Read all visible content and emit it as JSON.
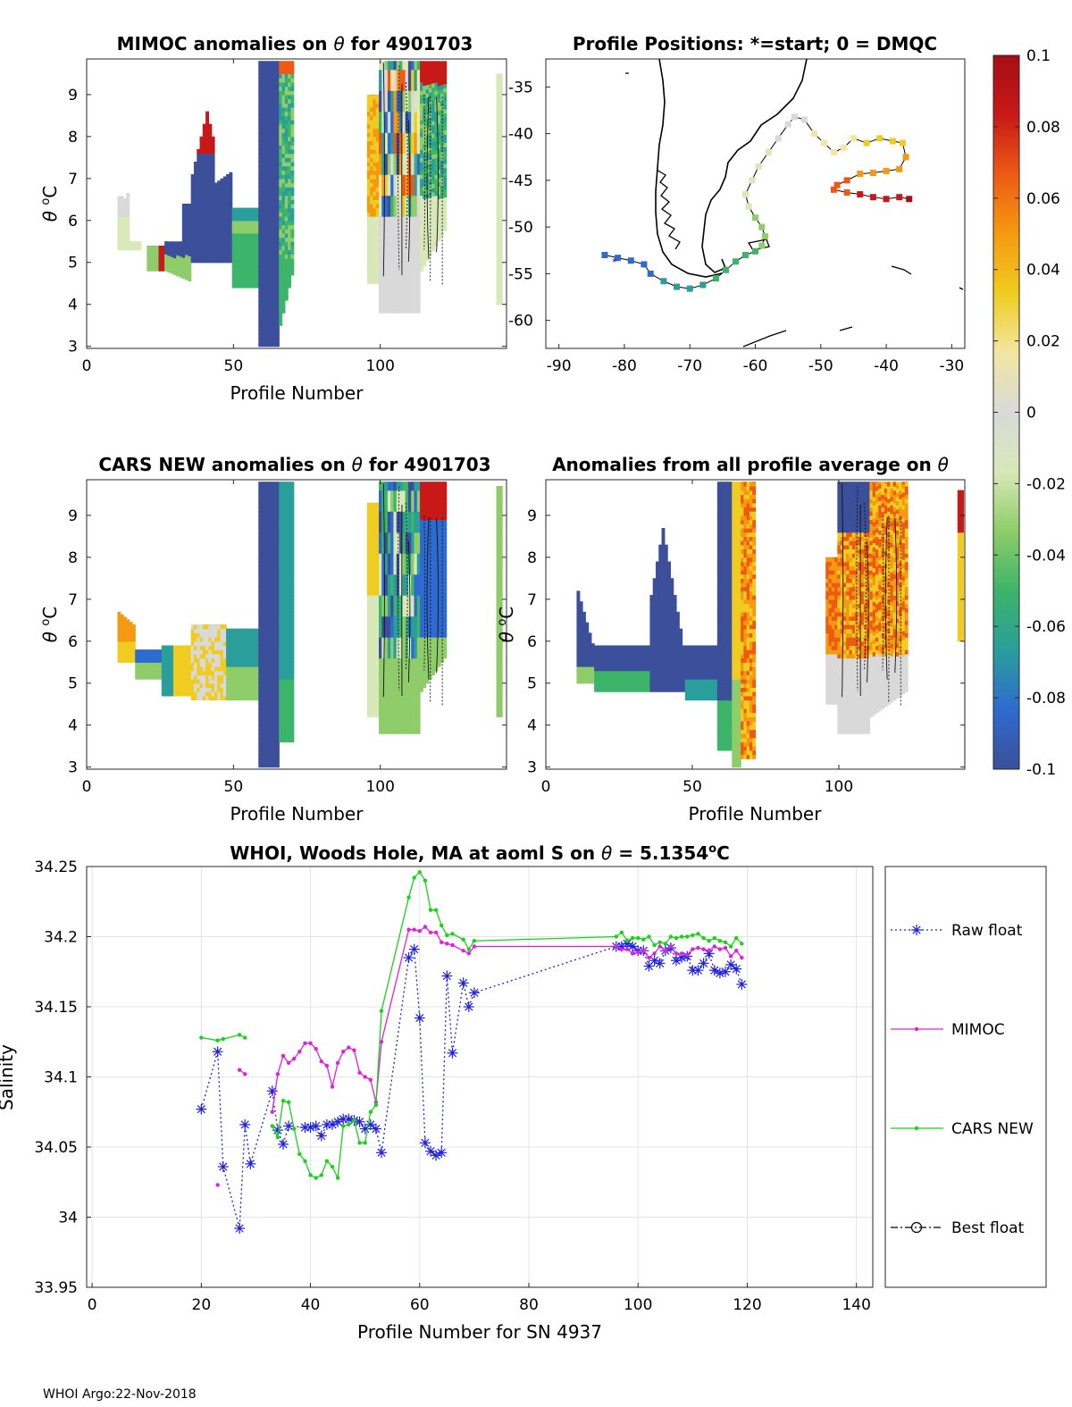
{
  "footer": "WHOI Argo:22-Nov-2018",
  "theta_symbol": "θ",
  "panels": {
    "mimoc": {
      "title_a": "MIMOC anomalies on",
      "title_b": "for 4901703"
    },
    "map": {
      "title": "Profile Positions: *=start; 0 = DMQC"
    },
    "cars": {
      "title_a": "CARS NEW anomalies on",
      "title_b": "for 4901703"
    },
    "allavg": {
      "title_a": "Anomalies from all profile average on"
    },
    "xlabel": "Profile Number",
    "ylabel_theta": "C",
    "ylabel_deg": "o"
  },
  "colorbar": {
    "ticks": [
      "0.1",
      "0.08",
      "0.06",
      "0.04",
      "0.02",
      "0",
      "-0.02",
      "-0.04",
      "-0.06",
      "-0.08",
      "-0.1"
    ],
    "colors": [
      "#3b4f9a",
      "#2e6bd0",
      "#2a9e9a",
      "#3cb46a",
      "#8fcc6a",
      "#d8e8b8",
      "#d9d9d9",
      "#f2e6a0",
      "#f0cc20",
      "#f59a10",
      "#ee5a14",
      "#c81818",
      "#a50f15"
    ]
  },
  "chart_data": [
    {
      "type": "heatmap",
      "name": "MIMOC anomalies",
      "title": "MIMOC anomalies on θ for 4901703",
      "xlabel": "Profile Number",
      "ylabel": "θ °C",
      "xlim": [
        0,
        143
      ],
      "ylim": [
        2.95,
        9.85
      ],
      "xticks": [
        0,
        50,
        100
      ],
      "yticks": [
        3,
        4,
        5,
        6,
        7,
        8,
        9
      ]
    },
    {
      "type": "scatter",
      "name": "Profile Positions",
      "title": "Profile Positions: *=start; 0 = DMQC",
      "xlim": [
        -92,
        -28
      ],
      "ylim": [
        -63,
        -32
      ],
      "xticks": [
        -90,
        -80,
        -70,
        -60,
        -50,
        -40,
        -30
      ],
      "yticks": [
        -35,
        -40,
        -45,
        -50,
        -55,
        -60
      ],
      "track": [
        [
          -83,
          -53
        ],
        [
          -81,
          -53.3
        ],
        [
          -79,
          -53.6
        ],
        [
          -77,
          -54
        ],
        [
          -76,
          -55
        ],
        [
          -74,
          -55.8
        ],
        [
          -72,
          -56.4
        ],
        [
          -70,
          -56.6
        ],
        [
          -68,
          -56.2
        ],
        [
          -66,
          -55.5
        ],
        [
          -64.5,
          -54.6
        ],
        [
          -63,
          -53.7
        ],
        [
          -61.5,
          -53
        ],
        [
          -60,
          -52.6
        ],
        [
          -59,
          -52
        ],
        [
          -58.5,
          -51
        ],
        [
          -59,
          -50
        ],
        [
          -60,
          -49
        ],
        [
          -61,
          -47.8
        ],
        [
          -61.5,
          -46.5
        ],
        [
          -60.5,
          -45
        ],
        [
          -59.5,
          -43.5
        ],
        [
          -58,
          -42
        ],
        [
          -56.5,
          -40.5
        ],
        [
          -55,
          -39
        ],
        [
          -54,
          -38.2
        ],
        [
          -52.5,
          -38.5
        ],
        [
          -51,
          -40
        ],
        [
          -49.5,
          -41
        ],
        [
          -48,
          -42
        ],
        [
          -46.5,
          -41.5
        ],
        [
          -45,
          -40.5
        ],
        [
          -43,
          -41
        ],
        [
          -41,
          -40.5
        ],
        [
          -39,
          -40.8
        ],
        [
          -37.5,
          -41
        ],
        [
          -37,
          -42.5
        ],
        [
          -38,
          -43.8
        ],
        [
          -40,
          -44
        ],
        [
          -42,
          -44.2
        ],
        [
          -44,
          -44.3
        ],
        [
          -46,
          -45
        ],
        [
          -47.5,
          -45.5
        ],
        [
          -48,
          -46
        ],
        [
          -46,
          -46.3
        ],
        [
          -44,
          -46.5
        ],
        [
          -42,
          -46.8
        ],
        [
          -40,
          -47
        ],
        [
          -38,
          -46.8
        ],
        [
          -36.5,
          -47
        ]
      ]
    },
    {
      "type": "heatmap",
      "name": "CARS NEW anomalies",
      "title": "CARS NEW anomalies on θ for 4901703",
      "xlabel": "Profile Number",
      "ylabel": "θ °C",
      "xlim": [
        0,
        143
      ],
      "ylim": [
        2.95,
        9.85
      ],
      "xticks": [
        0,
        50,
        100
      ],
      "yticks": [
        3,
        4,
        5,
        6,
        7,
        8,
        9
      ]
    },
    {
      "type": "heatmap",
      "name": "Anomalies from all profile average",
      "title": "Anomalies from all profile average on θ",
      "xlabel": "Profile Number",
      "ylabel": "θ °C",
      "xlim": [
        0,
        143
      ],
      "ylim": [
        2.95,
        9.85
      ],
      "xticks": [
        0,
        50,
        100
      ],
      "yticks": [
        3,
        4,
        5,
        6,
        7,
        8,
        9
      ]
    },
    {
      "type": "line",
      "name": "Salinity",
      "title": "WHOI, Woods Hole, MA at aoml S on θ = 5.1354°C",
      "title_main": "WHOI, Woods Hole, MA at aoml S on",
      "title_value": "= 5.1354",
      "title_unit": "C",
      "title_deg": "o",
      "xlabel": "Profile Number for SN 4937",
      "ylabel": "Salinity",
      "xlim": [
        -1,
        143
      ],
      "ylim": [
        33.95,
        34.25
      ],
      "xticks": [
        0,
        20,
        40,
        60,
        80,
        100,
        120,
        140
      ],
      "yticks": [
        "33.95",
        "34",
        "34.05",
        "34.1",
        "34.15",
        "34.2",
        "34.25"
      ],
      "legend": [
        "Raw float",
        "MIMOC",
        "CARS NEW",
        "Best float"
      ],
      "legend_position": "right-outside",
      "series": [
        {
          "name": "Raw float",
          "color": "#1f1fe0",
          "style": "dotted",
          "marker": "asterisk",
          "points": [
            [
              20,
              34.077
            ],
            [
              23,
              34.118
            ],
            [
              24,
              34.036
            ],
            [
              27,
              33.992
            ],
            [
              28,
              34.066
            ],
            [
              29,
              34.038
            ],
            [
              33,
              34.09
            ],
            [
              34,
              34.062
            ],
            [
              35,
              34.052
            ],
            [
              36,
              34.065
            ],
            [
              39,
              34.064
            ],
            [
              40,
              34.064
            ],
            [
              41,
              34.065
            ],
            [
              42,
              34.058
            ],
            [
              43,
              34.066
            ],
            [
              44,
              34.066
            ],
            [
              45,
              34.068
            ],
            [
              46,
              34.07
            ],
            [
              47,
              34.07
            ],
            [
              48,
              34.069
            ],
            [
              49,
              34.068
            ],
            [
              50,
              34.063
            ],
            [
              51,
              34.066
            ],
            [
              52,
              34.063
            ],
            [
              53,
              34.046
            ],
            [
              58,
              34.185
            ],
            [
              59,
              34.191
            ],
            [
              60,
              34.142
            ],
            [
              61,
              34.053
            ],
            [
              62,
              34.047
            ],
            [
              63,
              34.044
            ],
            [
              64,
              34.046
            ],
            [
              65,
              34.172
            ],
            [
              66,
              34.117
            ],
            [
              68,
              34.167
            ],
            [
              69,
              34.15
            ],
            [
              70,
              34.16
            ],
            [
              96,
              34.193
            ],
            [
              97,
              34.193
            ],
            [
              98,
              34.195
            ],
            [
              99,
              34.193
            ],
            [
              100,
              34.19
            ],
            [
              101,
              34.19
            ],
            [
              102,
              34.179
            ],
            [
              103,
              34.183
            ],
            [
              104,
              34.181
            ],
            [
              105,
              34.19
            ],
            [
              106,
              34.192
            ],
            [
              107,
              34.183
            ],
            [
              108,
              34.185
            ],
            [
              109,
              34.186
            ],
            [
              110,
              34.176
            ],
            [
              111,
              34.176
            ],
            [
              112,
              34.181
            ],
            [
              113,
              34.188
            ],
            [
              114,
              34.176
            ],
            [
              115,
              34.174
            ],
            [
              116,
              34.175
            ],
            [
              117,
              34.18
            ],
            [
              118,
              34.177
            ],
            [
              119,
              34.166
            ]
          ]
        },
        {
          "name": "MIMOC",
          "color": "#e020e0",
          "style": "solid",
          "marker": "dot",
          "points": [
            [
              23,
              34.023
            ],
            null,
            [
              27,
              34.105
            ],
            [
              28,
              34.102
            ],
            null,
            [
              33,
              34.075
            ],
            [
              34,
              34.102
            ],
            [
              35,
              34.115
            ],
            [
              36,
              34.11
            ],
            [
              37,
              34.113
            ],
            [
              38,
              34.118
            ],
            [
              39,
              34.124
            ],
            [
              40,
              34.124
            ],
            [
              41,
              34.12
            ],
            [
              42,
              34.111
            ],
            [
              43,
              34.108
            ],
            [
              44,
              34.093
            ],
            [
              45,
              34.11
            ],
            [
              46,
              34.118
            ],
            [
              47,
              34.121
            ],
            [
              48,
              34.119
            ],
            [
              49,
              34.103
            ],
            [
              50,
              34.1
            ],
            [
              51,
              34.098
            ],
            [
              52,
              34.082
            ],
            [
              53,
              34.125
            ],
            [
              58,
              34.205
            ],
            [
              59,
              34.205
            ],
            [
              60,
              34.204
            ],
            [
              61,
              34.207
            ],
            [
              62,
              34.203
            ],
            [
              63,
              34.203
            ],
            [
              64,
              34.196
            ],
            [
              65,
              34.195
            ],
            [
              66,
              34.194
            ],
            [
              68,
              34.19
            ],
            [
              69,
              34.188
            ],
            [
              70,
              34.193
            ],
            [
              96,
              34.193
            ],
            [
              97,
              34.191
            ],
            [
              98,
              34.191
            ],
            [
              99,
              34.188
            ],
            [
              100,
              34.189
            ],
            [
              101,
              34.19
            ],
            [
              102,
              34.185
            ],
            [
              103,
              34.188
            ],
            [
              104,
              34.193
            ],
            [
              105,
              34.19
            ],
            [
              106,
              34.193
            ],
            [
              107,
              34.188
            ],
            [
              108,
              34.188
            ],
            [
              109,
              34.187
            ],
            [
              110,
              34.191
            ],
            [
              111,
              34.192
            ],
            [
              112,
              34.191
            ],
            [
              113,
              34.19
            ],
            [
              114,
              34.193
            ],
            [
              115,
              34.191
            ],
            [
              116,
              34.192
            ],
            [
              117,
              34.186
            ],
            [
              118,
              34.19
            ],
            [
              119,
              34.185
            ]
          ]
        },
        {
          "name": "CARS NEW",
          "color": "#19d219",
          "style": "solid",
          "marker": "dot",
          "points": [
            [
              20,
              34.128
            ],
            [
              23,
              34.126
            ],
            [
              24,
              34.127
            ],
            [
              27,
              34.13
            ],
            [
              28,
              34.128
            ],
            null,
            [
              33,
              34.065
            ],
            [
              34,
              34.057
            ],
            [
              35,
              34.083
            ],
            [
              36,
              34.082
            ],
            [
              37,
              34.063
            ],
            [
              38,
              34.045
            ],
            [
              39,
              34.04
            ],
            [
              40,
              34.03
            ],
            [
              41,
              34.028
            ],
            [
              42,
              34.03
            ],
            [
              43,
              34.04
            ],
            [
              44,
              34.036
            ],
            [
              45,
              34.028
            ],
            [
              46,
              34.065
            ],
            [
              47,
              34.066
            ],
            [
              48,
              34.069
            ],
            [
              49,
              34.053
            ],
            [
              50,
              34.053
            ],
            [
              51,
              34.075
            ],
            [
              52,
              34.08
            ],
            [
              53,
              34.147
            ],
            [
              58,
              34.228
            ],
            [
              59,
              34.242
            ],
            [
              60,
              34.246
            ],
            [
              61,
              34.24
            ],
            [
              62,
              34.219
            ],
            [
              63,
              34.219
            ],
            [
              64,
              34.208
            ],
            [
              65,
              34.201
            ],
            [
              66,
              34.202
            ],
            [
              68,
              34.198
            ],
            [
              69,
              34.191
            ],
            [
              70,
              34.197
            ],
            [
              96,
              34.2
            ],
            [
              97,
              34.203
            ],
            [
              98,
              34.197
            ],
            [
              99,
              34.199
            ],
            [
              100,
              34.199
            ],
            [
              101,
              34.198
            ],
            [
              102,
              34.2
            ],
            [
              103,
              34.194
            ],
            [
              104,
              34.196
            ],
            [
              105,
              34.195
            ],
            [
              106,
              34.2
            ],
            [
              107,
              34.199
            ],
            [
              108,
              34.2
            ],
            [
              109,
              34.2
            ],
            [
              110,
              34.201
            ],
            [
              111,
              34.202
            ],
            [
              112,
              34.199
            ],
            [
              113,
              34.197
            ],
            [
              114,
              34.199
            ],
            [
              115,
              34.197
            ],
            [
              116,
              34.196
            ],
            [
              117,
              34.193
            ],
            [
              118,
              34.199
            ],
            [
              119,
              34.195
            ]
          ]
        },
        {
          "name": "Best float",
          "color": "#000000",
          "style": "dashdot",
          "marker": "circle",
          "points": []
        }
      ]
    }
  ]
}
